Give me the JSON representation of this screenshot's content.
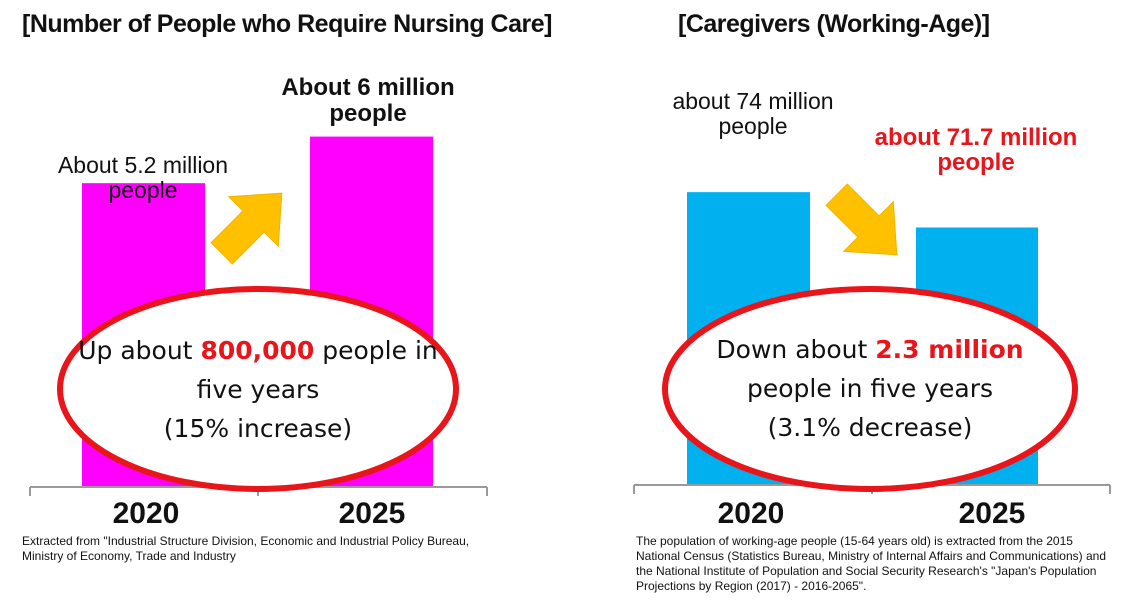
{
  "colors": {
    "left_bar": "#ff00ff",
    "right_bar": "#00b0ef",
    "arrow": "#ffc000",
    "ellipse_stroke": "#e8151b",
    "highlight": "#e8151b"
  },
  "left": {
    "title": "[Number of People who Require Nursing Care]",
    "callout": {
      "prefix": "Up about ",
      "highlight": "800,000",
      "suffix": " people in",
      "line2": "five years",
      "line3": "(15% increase)"
    },
    "source": "Extracted from \"Industrial Structure Division, Economic and Industrial Policy Bureau, Ministry of Economy, Trade and Industry",
    "arrow_icon": "arrow-up-right-icon"
  },
  "right": {
    "title": "[Caregivers (Working-Age)]",
    "callout": {
      "prefix": "Down about ",
      "highlight": "2.3 million",
      "line2": "people in five years",
      "line3": "(3.1% decrease)"
    },
    "source": "The population of working-age people (15-64 years old) is extracted from the 2015  National Census (Statistics Bureau, Ministry of Internal Affairs and Communications) and the National Institute of Population and Social Security Research's \"Japan's Population Projections by Region (2017) - 2016-2065\".",
    "arrow_icon": "arrow-down-right-icon"
  },
  "chart_data": [
    {
      "type": "bar",
      "title": "[Number of People who Require Nursing Care]",
      "categories": [
        "2020",
        "2025"
      ],
      "values": [
        5.2,
        6.0
      ],
      "units": "million people",
      "data_labels": [
        [
          "About 5.2 million",
          "people"
        ],
        [
          "About 6 million",
          "people"
        ]
      ],
      "ylim": [
        0,
        6.8
      ],
      "grid": false
    },
    {
      "type": "bar",
      "title": "[Caregivers (Working-Age)]",
      "categories": [
        "2020",
        "2025"
      ],
      "values": [
        74,
        71.7
      ],
      "units": "million people",
      "data_labels": [
        [
          "about 74 million",
          "people"
        ],
        [
          "about 71.7 million",
          "people"
        ]
      ],
      "ylim": [
        55,
        80
      ],
      "grid": false
    }
  ]
}
